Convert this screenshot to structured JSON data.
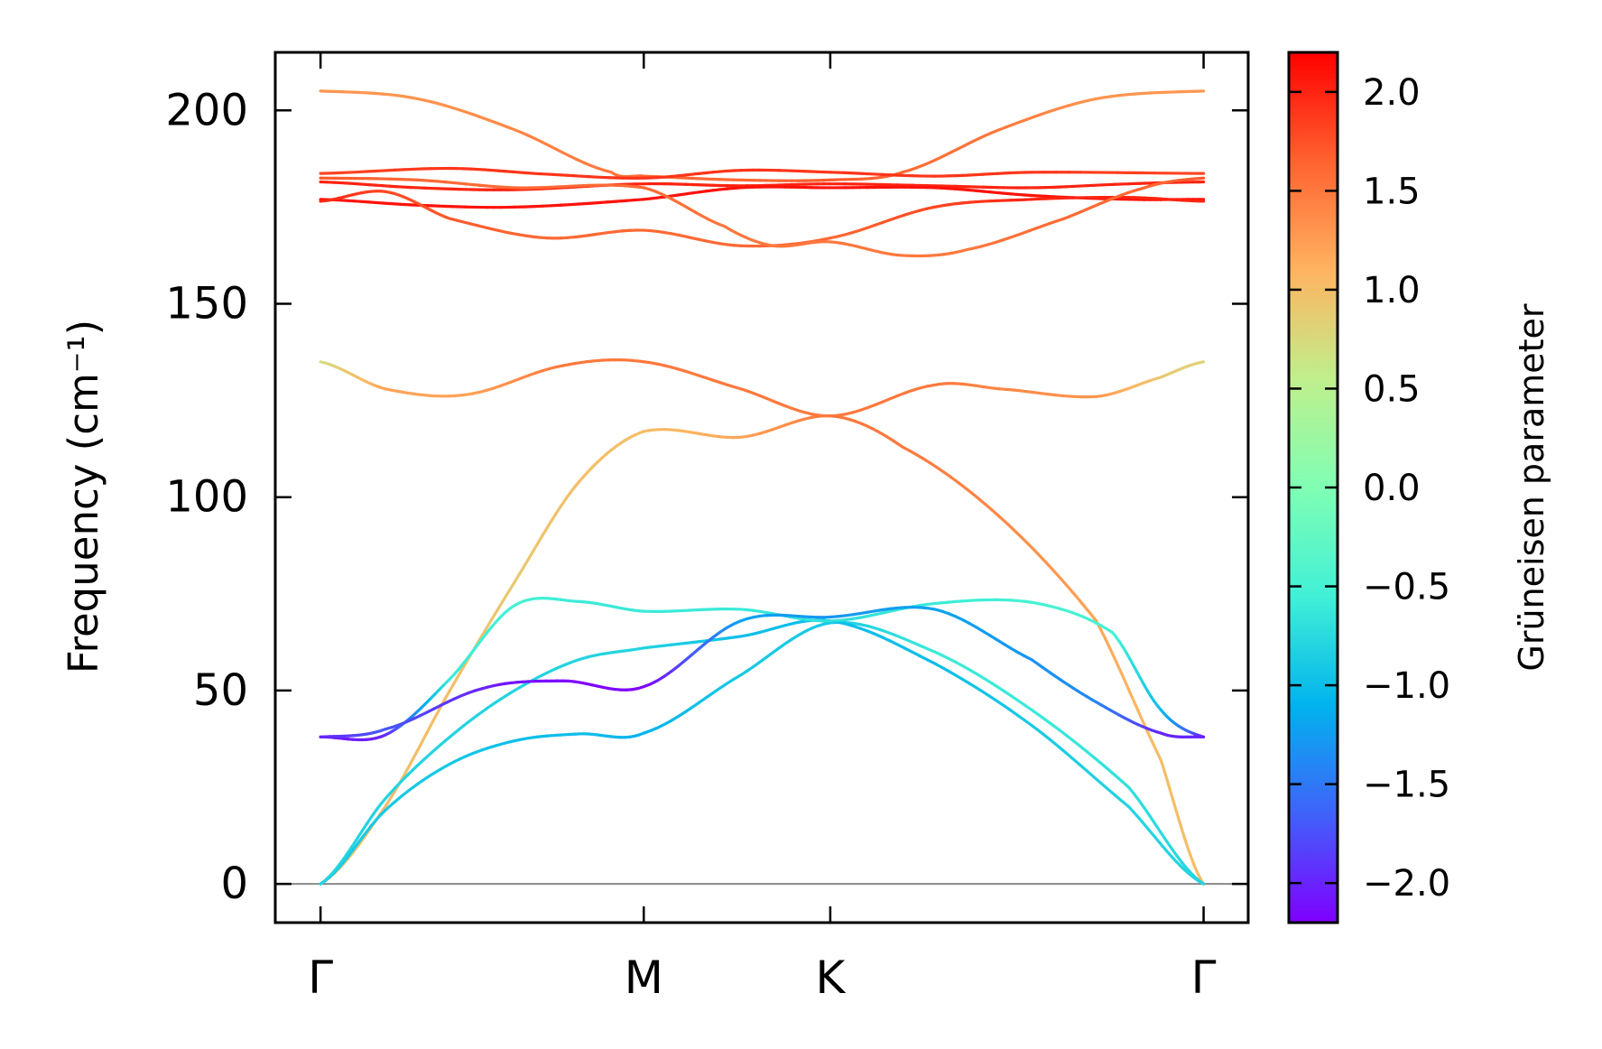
{
  "chart_data": {
    "type": "line",
    "title": "",
    "xlabel": "",
    "ylabel": "Frequency (cm⁻¹)",
    "ylim": [
      -10,
      215
    ],
    "y_ticks": [
      0,
      50,
      100,
      150,
      200
    ],
    "x_ticks": [
      {
        "label": "Γ",
        "x": 0.0
      },
      {
        "label": "M",
        "x": 1.0
      },
      {
        "label": "K",
        "x": 1.577
      },
      {
        "label": "Γ",
        "x": 2.732
      }
    ],
    "xlim": [
      -0.14,
      2.87
    ],
    "grid": false,
    "zero_line": true,
    "colorbar": {
      "label": "Grüneisen parameter",
      "range": [
        -2.2,
        2.2
      ],
      "ticks": [
        -2.0,
        -1.5,
        -1.0,
        -0.5,
        0.0,
        0.5,
        1.0,
        1.5,
        2.0
      ],
      "tick_labels": [
        "−2.0",
        "−1.5",
        "−1.0",
        "−0.5",
        "0.0",
        "0.5",
        "1.0",
        "1.5",
        "2.0"
      ],
      "colormap": "rainbow"
    },
    "series": [
      {
        "points": [
          [
            0,
            0,
            1.0
          ],
          [
            0.2,
            20,
            1.0
          ],
          [
            0.4,
            50,
            1.0
          ],
          [
            0.6,
            78,
            0.9
          ],
          [
            0.8,
            104,
            1.0
          ],
          [
            1.0,
            117,
            1.0
          ],
          [
            1.3,
            115.5,
            1.2
          ],
          [
            1.577,
            121,
            1.5
          ],
          [
            1.8,
            113,
            1.5
          ],
          [
            2.1,
            95,
            1.4
          ],
          [
            2.4,
            68,
            1.2
          ],
          [
            2.6,
            32,
            1.0
          ],
          [
            2.732,
            0,
            1.0
          ]
        ]
      },
      {
        "points": [
          [
            0,
            0,
            -0.9
          ],
          [
            0.2,
            19,
            -0.9
          ],
          [
            0.4,
            31,
            -0.9
          ],
          [
            0.6,
            37,
            -1.0
          ],
          [
            0.8,
            38.8,
            -1.0
          ],
          [
            1.0,
            39,
            -1.1
          ],
          [
            1.3,
            54,
            -0.9
          ],
          [
            1.577,
            67.5,
            -0.9
          ],
          [
            1.9,
            60,
            -0.6
          ],
          [
            2.2,
            45,
            -0.6
          ],
          [
            2.5,
            25,
            -0.7
          ],
          [
            2.732,
            0,
            -0.8
          ]
        ]
      },
      {
        "points": [
          [
            0,
            0,
            -0.8
          ],
          [
            0.2,
            22,
            -0.8
          ],
          [
            0.4,
            38,
            -0.8
          ],
          [
            0.6,
            50,
            -0.8
          ],
          [
            0.8,
            58,
            -0.8
          ],
          [
            1.0,
            61,
            -0.8
          ],
          [
            1.3,
            64,
            -1.0
          ],
          [
            1.577,
            68,
            -1.0
          ],
          [
            1.9,
            57,
            -1.0
          ],
          [
            2.2,
            41,
            -0.9
          ],
          [
            2.5,
            20,
            -0.8
          ],
          [
            2.732,
            0,
            -0.8
          ]
        ]
      },
      {
        "points": [
          [
            0,
            38,
            -2.1
          ],
          [
            0.2,
            38.5,
            -2.0
          ],
          [
            0.4,
            53,
            -0.6
          ],
          [
            0.6,
            72,
            -0.5
          ],
          [
            0.8,
            73,
            -0.6
          ],
          [
            1.0,
            70.5,
            -0.6
          ],
          [
            1.3,
            71,
            -0.6
          ],
          [
            1.577,
            68,
            -0.7
          ],
          [
            1.9,
            72.5,
            -0.6
          ],
          [
            2.2,
            72.8,
            -0.5
          ],
          [
            2.45,
            65,
            -0.5
          ],
          [
            2.6,
            45,
            -1.0
          ],
          [
            2.732,
            38,
            -2.0
          ]
        ]
      },
      {
        "points": [
          [
            0,
            38,
            -2.0
          ],
          [
            0.2,
            40,
            -1.7
          ],
          [
            0.5,
            50.5,
            -2.0
          ],
          [
            0.75,
            52.5,
            -2.2
          ],
          [
            1.0,
            51,
            -2.2
          ],
          [
            1.3,
            68,
            -1.2
          ],
          [
            1.577,
            69,
            -1.3
          ],
          [
            1.9,
            71,
            -1.2
          ],
          [
            2.2,
            58,
            -1.3
          ],
          [
            2.4,
            47,
            -1.4
          ],
          [
            2.6,
            39,
            -2.0
          ],
          [
            2.732,
            38,
            -2.0
          ]
        ]
      },
      {
        "points": [
          [
            0,
            135,
            0.7
          ],
          [
            0.2,
            128,
            1.2
          ],
          [
            0.45,
            126.5,
            1.2
          ],
          [
            0.75,
            134,
            1.5
          ],
          [
            1.0,
            135,
            1.5
          ],
          [
            1.3,
            128,
            1.5
          ],
          [
            1.577,
            121,
            1.5
          ],
          [
            1.9,
            129,
            1.5
          ],
          [
            2.1,
            128,
            1.4
          ],
          [
            2.4,
            126,
            1.3
          ],
          [
            2.6,
            131,
            0.9
          ],
          [
            2.732,
            135,
            0.8
          ]
        ]
      },
      {
        "points": [
          [
            0,
            205,
            1.3
          ],
          [
            0.3,
            203,
            1.3
          ],
          [
            0.6,
            195,
            1.4
          ],
          [
            0.9,
            184,
            1.5
          ],
          [
            1.0,
            183,
            1.6
          ],
          [
            1.3,
            182,
            1.6
          ],
          [
            1.577,
            182,
            1.7
          ],
          [
            1.8,
            184,
            1.6
          ],
          [
            2.1,
            195,
            1.5
          ],
          [
            2.4,
            203,
            1.3
          ],
          [
            2.732,
            205,
            1.3
          ]
        ]
      },
      {
        "points": [
          [
            0,
            183.7,
            1.8
          ],
          [
            0.4,
            185,
            1.9
          ],
          [
            0.7,
            183.5,
            1.9
          ],
          [
            1.0,
            182.5,
            1.9
          ],
          [
            1.3,
            184.5,
            1.9
          ],
          [
            1.577,
            184,
            1.9
          ],
          [
            1.9,
            183,
            1.9
          ],
          [
            2.2,
            184,
            1.9
          ],
          [
            2.732,
            183.7,
            1.8
          ]
        ]
      },
      {
        "points": [
          [
            0,
            181.5,
            2.0
          ],
          [
            0.3,
            180,
            2.0
          ],
          [
            0.6,
            179.5,
            2.0
          ],
          [
            1.0,
            181,
            2.0
          ],
          [
            1.3,
            180.5,
            2.0
          ],
          [
            1.577,
            181,
            2.0
          ],
          [
            1.9,
            180.5,
            2.0
          ],
          [
            2.2,
            180,
            2.0
          ],
          [
            2.5,
            181,
            2.0
          ],
          [
            2.732,
            181.5,
            2.0
          ]
        ]
      },
      {
        "points": [
          [
            0,
            177,
            2.1
          ],
          [
            0.3,
            175.5,
            2.1
          ],
          [
            0.6,
            175,
            2.1
          ],
          [
            1.0,
            177,
            2.1
          ],
          [
            1.3,
            180,
            2.1
          ],
          [
            1.577,
            180,
            2.1
          ],
          [
            1.9,
            180,
            2.1
          ],
          [
            2.2,
            178,
            2.1
          ],
          [
            2.5,
            177,
            2.1
          ],
          [
            2.732,
            177,
            2.1
          ]
        ]
      },
      {
        "points": [
          [
            0,
            176.5,
            2.0
          ],
          [
            0.2,
            179,
            1.8
          ],
          [
            0.4,
            172,
            1.7
          ],
          [
            0.7,
            167,
            1.6
          ],
          [
            1.0,
            169,
            1.6
          ],
          [
            1.3,
            165,
            1.6
          ],
          [
            1.577,
            167,
            1.6
          ],
          [
            1.9,
            175,
            1.8
          ],
          [
            2.2,
            177,
            2.0
          ],
          [
            2.5,
            177.5,
            2.0
          ],
          [
            2.732,
            176.5,
            2.0
          ]
        ]
      },
      {
        "points": [
          [
            0,
            182.5,
            1.7
          ],
          [
            0.3,
            182,
            1.6
          ],
          [
            0.6,
            180,
            1.6
          ],
          [
            1.0,
            180,
            1.6
          ],
          [
            1.25,
            170,
            1.5
          ],
          [
            1.4,
            165,
            1.5
          ],
          [
            1.577,
            166,
            1.5
          ],
          [
            1.8,
            162.5,
            1.5
          ],
          [
            2.0,
            164,
            1.5
          ],
          [
            2.3,
            172,
            1.6
          ],
          [
            2.55,
            180,
            1.6
          ],
          [
            2.732,
            182.5,
            1.7
          ]
        ]
      }
    ]
  }
}
